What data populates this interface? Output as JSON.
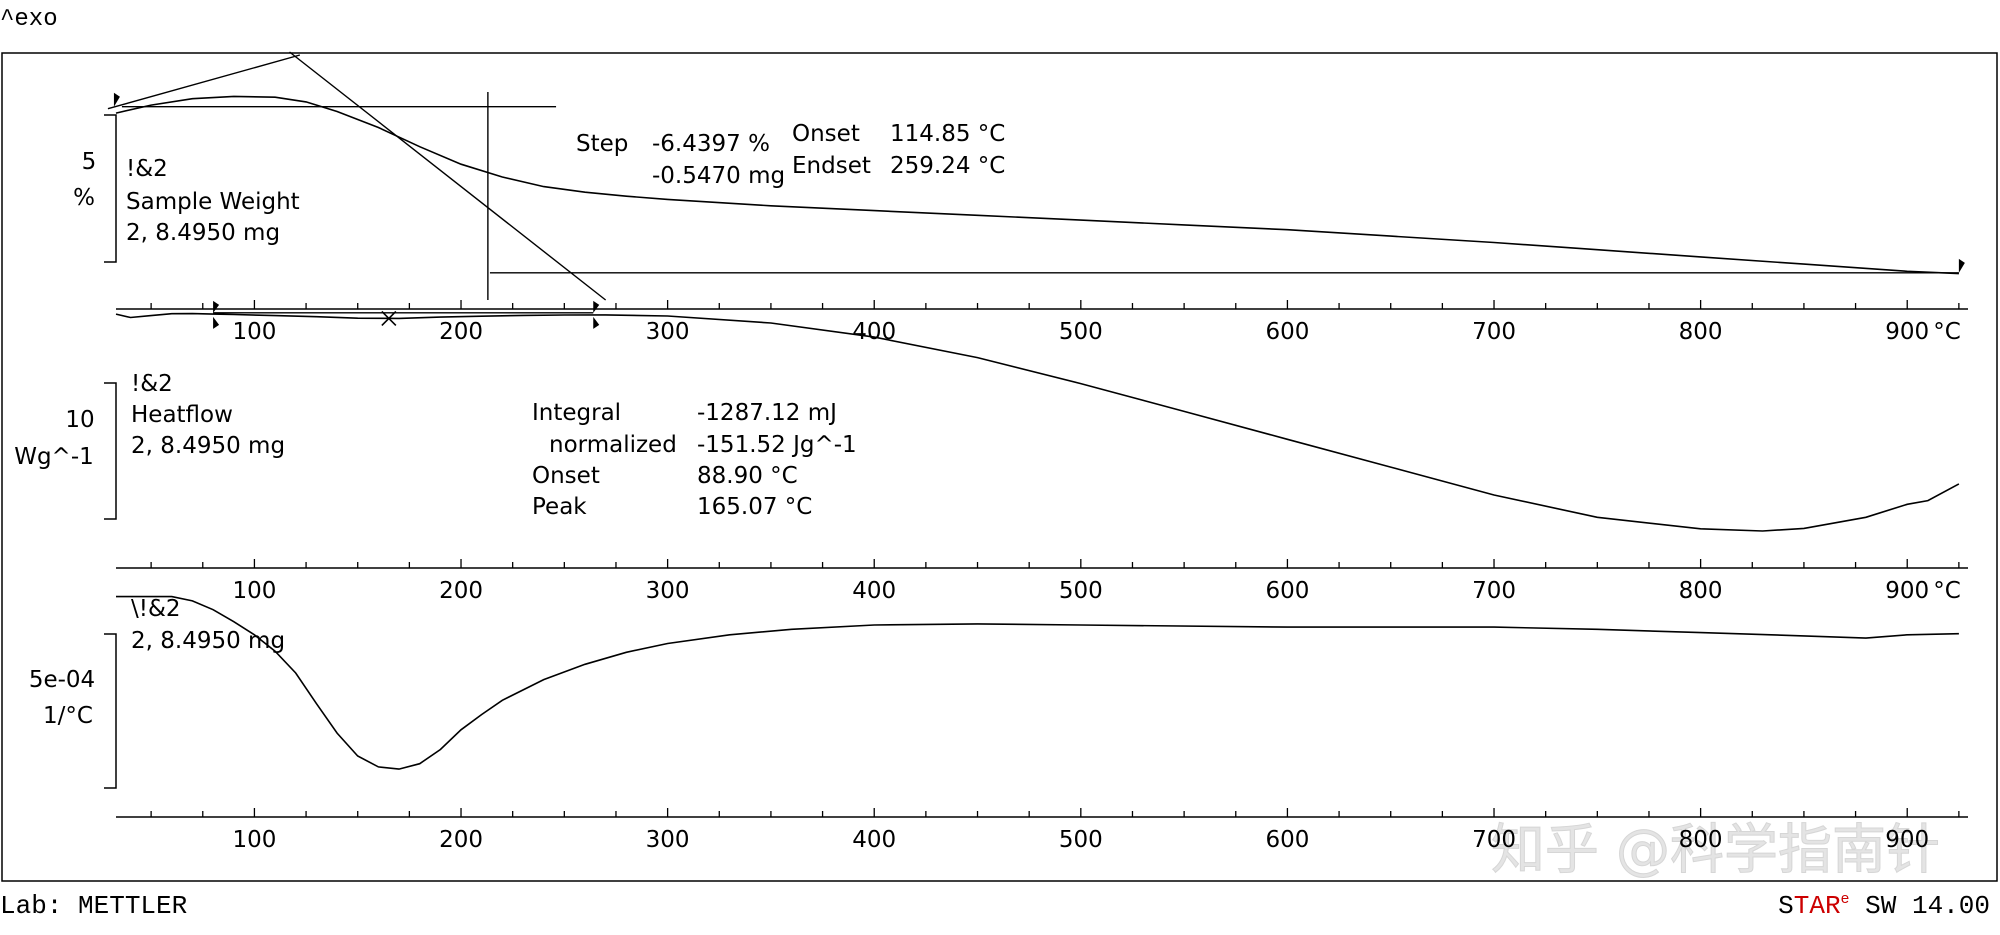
{
  "header": {
    "exo_label": "^exo"
  },
  "footer": {
    "lab": "Lab: METTLER",
    "brand_part1": "S",
    "brand_part2": "TAR",
    "brand_superscript": "e",
    "brand_part3": " SW 14.00",
    "brand_color": "#cc0000",
    "watermark": "知乎 @科学指南针"
  },
  "x_axis": {
    "ticks": [
      100,
      200,
      300,
      400,
      500,
      600,
      700,
      800,
      900
    ],
    "unit": "°C",
    "range": [
      33,
      925
    ],
    "minor_step": 25
  },
  "chart_data": [
    {
      "type": "line",
      "name": "tga",
      "curve_ref": "!&2",
      "title": "Sample Weight",
      "sample": "2, 8.4950 mg",
      "y_scale_value": "5",
      "y_scale_unit": "%",
      "x": [
        33,
        50,
        70,
        90,
        110,
        125,
        140,
        160,
        180,
        200,
        220,
        240,
        260,
        280,
        300,
        350,
        400,
        450,
        500,
        550,
        600,
        650,
        700,
        750,
        800,
        850,
        900,
        925
      ],
      "y": [
        99.6,
        100.1,
        100.5,
        100.65,
        100.6,
        100.3,
        99.7,
        98.7,
        97.5,
        96.4,
        95.6,
        95.0,
        94.65,
        94.4,
        94.2,
        93.8,
        93.5,
        93.2,
        92.9,
        92.6,
        92.3,
        91.9,
        91.5,
        91.05,
        90.6,
        90.15,
        89.7,
        89.55
      ],
      "ylim": [
        87.9,
        102.3
      ],
      "analysis": {
        "step_label": "Step",
        "step_percent": "-6.4397 %",
        "step_mass": "-0.5470 mg",
        "onset_label": "Onset",
        "onset_value": "114.85 °C",
        "endset_label": "Endset",
        "endset_value": "259.24 °C",
        "onset_x": 114.85,
        "endset_x": 259.24,
        "limits_x": [
          32,
          925
        ],
        "level_start": 100.0,
        "level_end": 89.6
      }
    },
    {
      "type": "line",
      "name": "heatflow",
      "curve_ref": "!&2",
      "title": "Heatflow",
      "sample": "2, 8.4950 mg",
      "y_scale_value": "10",
      "y_scale_unit": "Wg^-1",
      "x": [
        33,
        40,
        50,
        60,
        70,
        80,
        90,
        110,
        130,
        150,
        170,
        190,
        210,
        230,
        250,
        270,
        300,
        350,
        400,
        450,
        500,
        550,
        600,
        650,
        700,
        750,
        800,
        830,
        850,
        880,
        900,
        910,
        925
      ],
      "y": [
        0.2,
        -0.7,
        -0.2,
        0.3,
        0.35,
        0.2,
        0.1,
        -0.2,
        -0.5,
        -0.9,
        -0.95,
        -0.6,
        -0.35,
        -0.15,
        -0.05,
        0.0,
        -0.3,
        -2.2,
        -6.0,
        -11.5,
        -18.5,
        -26.0,
        -33.5,
        -41.0,
        -48.5,
        -54.5,
        -57.6,
        -58.2,
        -57.5,
        -54.5,
        -51.0,
        -50.0,
        -45.5
      ],
      "ylim": [
        -66,
        4
      ],
      "analysis": {
        "integral_label": "Integral",
        "integral_value": "-1287.12 mJ",
        "normalized_label": "normalized",
        "normalized_value": "-151.52 Jg^-1",
        "onset_label": "Onset",
        "onset_value": "88.90 °C",
        "peak_label": "Peak",
        "peak_value": "165.07 °C",
        "limits_x": [
          80,
          264
        ],
        "peak_x": 165.07
      }
    },
    {
      "type": "line",
      "name": "dtg",
      "curve_ref": "\\!&2",
      "sample": "2, 8.4950 mg",
      "y_scale_value": "5e-04",
      "y_scale_unit": "1/°C",
      "x": [
        33,
        50,
        60,
        70,
        80,
        90,
        100,
        110,
        120,
        130,
        140,
        150,
        160,
        170,
        180,
        190,
        200,
        210,
        220,
        240,
        260,
        280,
        300,
        330,
        360,
        400,
        450,
        500,
        600,
        700,
        750,
        800,
        850,
        880,
        900,
        925
      ],
      "y": [
        0.0,
        0.0,
        0.0,
        -0.4,
        -1.2,
        -2.3,
        -3.5,
        -5.0,
        -7.0,
        -9.8,
        -12.5,
        -14.6,
        -15.6,
        -15.8,
        -15.3,
        -14.0,
        -12.2,
        -10.8,
        -9.5,
        -7.6,
        -6.2,
        -5.1,
        -4.3,
        -3.5,
        -3.0,
        -2.6,
        -2.5,
        -2.6,
        -2.8,
        -2.8,
        -3.0,
        -3.3,
        -3.6,
        -3.8,
        -3.5,
        -3.4
      ],
      "ylim": [
        -20,
        0.6
      ]
    }
  ]
}
